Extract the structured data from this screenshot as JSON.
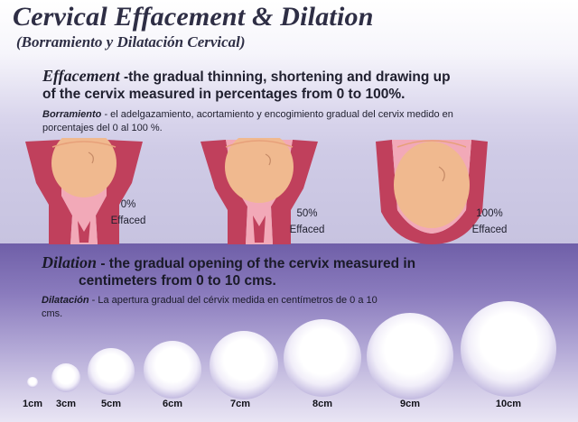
{
  "title": "Cervical Effacement & Dilation",
  "subtitle": "(Borramiento y Dilatación Cervical)",
  "effacement": {
    "term": "Effacement",
    "definition_line1": " -the gradual thinning, shortening and drawing up",
    "definition_line2": "of the cervix measured in percentages from 0 to 100%.",
    "es_term": "Borramiento",
    "es_definition": " - el adelgazamiento, acortamiento y encogimiento gradual del cervix medido en porcentajes del 0 al 100 %.",
    "stages": [
      {
        "percent": "0%",
        "label": "Effaced"
      },
      {
        "percent": "50%",
        "label": "Effaced"
      },
      {
        "percent": "100%",
        "label": "Effaced"
      }
    ]
  },
  "dilation": {
    "term": "Dilation",
    "definition_line1": " - the gradual opening of the cervix measured in",
    "definition_line2": "centimeters from 0 to 10 cms.",
    "es_term": "Dilatación",
    "es_definition": "  -  La apertura gradual del cérvix medida en centímetros de 0 a 10 cms.",
    "sizes": [
      "1cm",
      "3cm",
      "5cm",
      "6cm",
      "7cm",
      "8cm",
      "9cm",
      "10cm"
    ]
  },
  "colors": {
    "uterus": "#c0405c",
    "uterus_light": "#f2a9b8",
    "fetal_head": "#f0b98f",
    "purple_band": "#6f5fa8"
  }
}
